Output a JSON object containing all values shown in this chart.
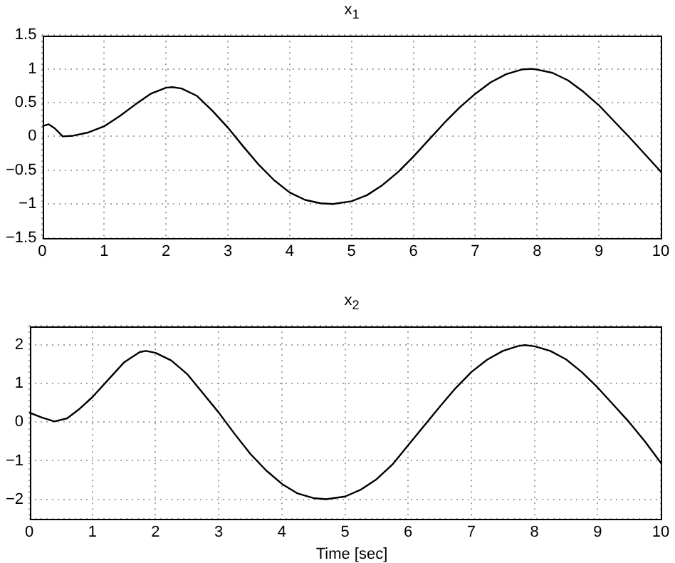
{
  "chart_data": [
    {
      "type": "line",
      "title": "x$_{1}$",
      "xlim": [
        0,
        10
      ],
      "xticks": [
        0,
        1,
        2,
        3,
        4,
        5,
        6,
        7,
        8,
        9,
        10
      ],
      "ylim": [
        -1.5,
        1.5
      ],
      "yticks": [
        -1.5,
        -1,
        -0.5,
        0,
        0.5,
        1,
        1.5
      ],
      "grid": true,
      "legend": false,
      "series": [
        {
          "color": "#000000",
          "x": [
            0,
            0.1,
            0.2,
            0.33,
            0.5,
            0.75,
            1,
            1.25,
            1.5,
            1.75,
            2,
            2.1,
            2.25,
            2.5,
            2.75,
            3,
            3.25,
            3.5,
            3.75,
            4,
            4.25,
            4.5,
            4.7,
            5,
            5.25,
            5.5,
            5.75,
            6,
            6.25,
            6.5,
            6.75,
            7,
            7.25,
            7.5,
            7.75,
            7.9,
            8,
            8.25,
            8.5,
            8.75,
            9,
            9.25,
            9.5,
            9.75,
            10
          ],
          "values": [
            0.15,
            0.18,
            0.12,
            0.0,
            0.01,
            0.06,
            0.15,
            0.3,
            0.47,
            0.63,
            0.72,
            0.73,
            0.71,
            0.6,
            0.38,
            0.13,
            -0.15,
            -0.42,
            -0.65,
            -0.83,
            -0.94,
            -0.99,
            -1.0,
            -0.96,
            -0.87,
            -0.72,
            -0.53,
            -0.3,
            -0.05,
            0.2,
            0.43,
            0.63,
            0.8,
            0.92,
            0.99,
            1.0,
            0.99,
            0.94,
            0.83,
            0.66,
            0.46,
            0.22,
            -0.02,
            -0.27,
            -0.52
          ]
        }
      ]
    },
    {
      "type": "line",
      "title": "x$_{2}$",
      "xlabel": "Time [sec]",
      "xlim": [
        0,
        10
      ],
      "xticks": [
        0,
        1,
        2,
        3,
        4,
        5,
        6,
        7,
        8,
        9,
        10
      ],
      "ylim": [
        -2.5,
        2.5
      ],
      "yticks": [
        {
          "value": -2.5,
          "label": null
        },
        -2,
        -1,
        0,
        1,
        2,
        {
          "value": 2.5,
          "label": null
        }
      ],
      "grid": true,
      "legend": false,
      "series": [
        {
          "color": "#000000",
          "x": [
            0,
            0.2,
            0.4,
            0.6,
            0.8,
            1,
            1.25,
            1.5,
            1.75,
            1.85,
            2,
            2.25,
            2.5,
            2.75,
            3,
            3.25,
            3.5,
            3.75,
            4,
            4.25,
            4.5,
            4.7,
            5,
            5.25,
            5.5,
            5.75,
            6,
            6.25,
            6.5,
            6.75,
            7,
            7.25,
            7.5,
            7.75,
            7.85,
            8,
            8.25,
            8.5,
            8.75,
            9,
            9.25,
            9.5,
            9.75,
            10
          ],
          "values": [
            0.25,
            0.12,
            0.02,
            0.1,
            0.35,
            0.65,
            1.1,
            1.55,
            1.82,
            1.85,
            1.8,
            1.6,
            1.25,
            0.75,
            0.25,
            -0.3,
            -0.82,
            -1.25,
            -1.6,
            -1.85,
            -1.97,
            -2.0,
            -1.93,
            -1.75,
            -1.48,
            -1.1,
            -0.6,
            -0.1,
            0.4,
            0.88,
            1.3,
            1.62,
            1.85,
            1.98,
            2.0,
            1.97,
            1.85,
            1.63,
            1.3,
            0.9,
            0.45,
            0.0,
            -0.5,
            -1.05
          ]
        }
      ]
    }
  ]
}
